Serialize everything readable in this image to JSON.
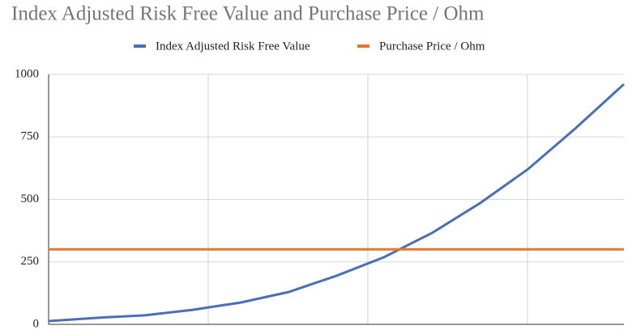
{
  "chart_data": {
    "type": "line",
    "title": "Index Adjusted Risk Free Value and Purchase Price / Ohm",
    "categories": [
      null,
      null,
      null,
      null,
      null,
      null,
      null,
      null,
      null,
      null,
      null,
      null,
      null
    ],
    "series": [
      {
        "name": "Index Adjusted Risk Free Value",
        "color": "#4a6fb5",
        "values": [
          13,
          26,
          36,
          58,
          87,
          129,
          194,
          269,
          366,
          485,
          621,
          786,
          961
        ]
      },
      {
        "name": "Purchase Price / Ohm",
        "color": "#e2782f",
        "values": [
          300,
          300,
          300,
          300,
          300,
          300,
          300,
          300,
          300,
          300,
          300,
          300,
          300
        ]
      }
    ],
    "ylim": [
      0,
      1000
    ],
    "yticks": [
      0,
      250,
      500,
      750,
      1000
    ],
    "grid": true,
    "legend": "top"
  }
}
